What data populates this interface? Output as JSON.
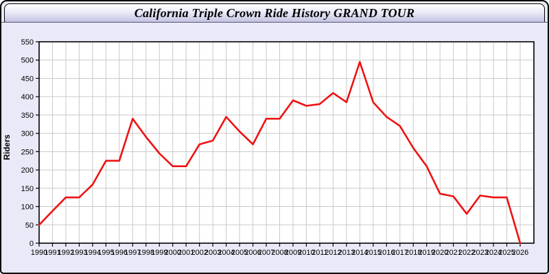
{
  "window": {
    "title": "California Triple Crown Ride History GRAND TOUR"
  },
  "chart_data": {
    "type": "line",
    "title": "California Triple Crown Ride History GRAND TOUR",
    "xlabel": "",
    "ylabel": "Riders",
    "series_name": "Riders",
    "x": [
      1990,
      1991,
      1992,
      1993,
      1994,
      1995,
      1996,
      1997,
      1998,
      1999,
      2000,
      2001,
      2002,
      2003,
      2004,
      2005,
      2006,
      2007,
      2008,
      2009,
      2010,
      2011,
      2012,
      2013,
      2014,
      2015,
      2016,
      2017,
      2018,
      2019,
      2020,
      2021,
      2022,
      2023,
      2024,
      2025,
      2026
    ],
    "values": [
      50,
      88,
      125,
      125,
      160,
      225,
      225,
      340,
      290,
      245,
      210,
      210,
      270,
      280,
      345,
      305,
      270,
      340,
      340,
      390,
      375,
      380,
      410,
      385,
      495,
      385,
      345,
      320,
      260,
      210,
      135,
      128,
      80,
      130,
      125,
      125,
      0
    ],
    "ylim": [
      0,
      550
    ],
    "yticks": [
      0,
      50,
      100,
      150,
      200,
      250,
      300,
      350,
      400,
      450,
      500,
      550
    ],
    "grid": true,
    "legend": "none",
    "line_color": "#ee1111",
    "plot_background": "#ffffff",
    "window_background": "#e9e9f8",
    "grid_color": "#c9c9c9",
    "axis_color": "#000000"
  }
}
